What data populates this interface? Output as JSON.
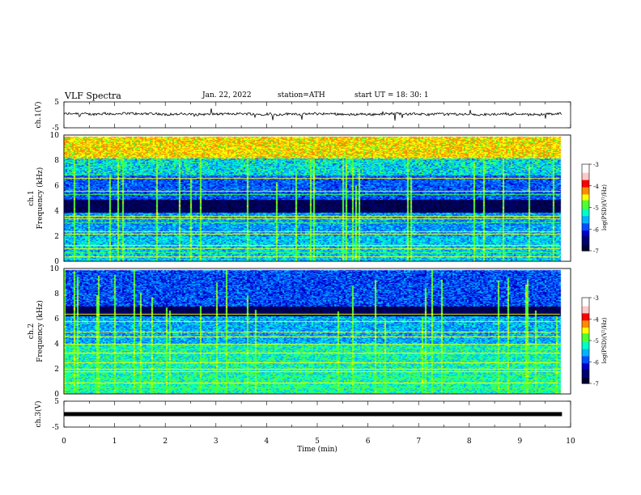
{
  "header": {
    "title": "VLF  Spectra",
    "date": "Jan. 22, 2022",
    "station": "station=ATH",
    "start": "start  UT  =    18: 30: 1"
  },
  "chart_data": [
    {
      "type": "line",
      "panel": "ch1-waveform",
      "ylabel": "ch.1(V)",
      "ylim": [
        -5,
        5
      ],
      "yticks": [
        "5",
        "-5"
      ],
      "xlim": [
        0,
        10
      ],
      "baseline_v": 0.3,
      "color": "#000000"
    },
    {
      "type": "heatmap",
      "panel": "ch1-spectrogram",
      "ylabel": "ch.1\nFrequency (kHz)",
      "ylim": [
        0,
        10
      ],
      "yticks": [
        "0",
        "2",
        "4",
        "6",
        "8",
        "10"
      ],
      "xlim": [
        0,
        9.8
      ],
      "colorbar": {
        "label": "log(PSD)(V²/Hz)",
        "ticks": [
          "-3",
          "-4",
          "-5",
          "-6",
          "-7"
        ],
        "range": [
          -7,
          -3
        ]
      },
      "quiet_band_khz": [
        3.9,
        4.9
      ]
    },
    {
      "type": "heatmap",
      "panel": "ch2-spectrogram",
      "ylabel": "ch.2\nFrequency (kHz)",
      "ylim": [
        0,
        10
      ],
      "yticks": [
        "0",
        "2",
        "4",
        "6",
        "8",
        "10"
      ],
      "xlim": [
        0,
        9.8
      ],
      "colorbar": {
        "label": "log(PSD)(V²/Hz)",
        "ticks": [
          "-3",
          "-4",
          "-5",
          "-6",
          "-7"
        ],
        "range": [
          -7,
          -3
        ]
      },
      "quiet_band_khz": [
        6.2,
        7.0
      ]
    },
    {
      "type": "line",
      "panel": "ch3-waveform",
      "ylabel": "ch.3(V)",
      "ylim": [
        -5,
        5
      ],
      "yticks": [
        "5",
        "-5"
      ],
      "xlim": [
        0,
        10
      ],
      "baseline_v": 0.0,
      "color": "#000000"
    }
  ],
  "xaxis": {
    "label": "Time  (min)",
    "range": [
      0,
      10
    ],
    "ticks": [
      "0",
      "1",
      "2",
      "3",
      "4",
      "5",
      "6",
      "7",
      "8",
      "9",
      "10"
    ]
  },
  "colormap": [
    "#000033",
    "#00006e",
    "#0000c8",
    "#0050ff",
    "#00b4ff",
    "#00ffc8",
    "#50ff32",
    "#ffff00",
    "#ff8c00",
    "#ff0000",
    "#ffc8c8",
    "#ffffff"
  ]
}
